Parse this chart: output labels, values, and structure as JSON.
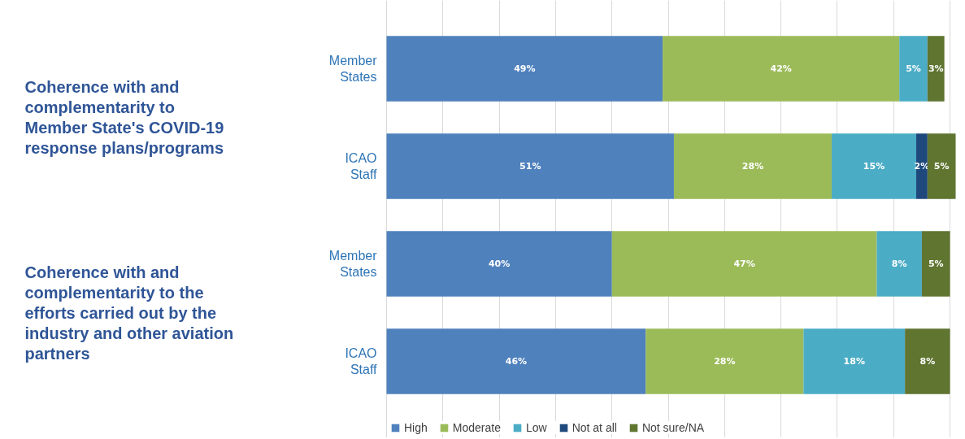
{
  "chart_data": {
    "type": "bar",
    "orientation": "horizontal",
    "stacked": true,
    "categories": [
      "Member States",
      "ICAO Staff",
      "Member States",
      "ICAO Staff"
    ],
    "series": [
      {
        "name": "High",
        "color": "#4f81bd",
        "values": [
          49,
          51,
          40,
          46
        ],
        "value_labels": [
          "49%",
          "51%",
          "40%",
          "46%"
        ]
      },
      {
        "name": "Moderate",
        "color": "#9bbb59",
        "values": [
          42,
          28,
          47,
          28
        ],
        "value_labels": [
          "42%",
          "28%",
          "47%",
          "28%"
        ]
      },
      {
        "name": "Low",
        "color": "#4bacc6",
        "values": [
          5,
          15,
          8,
          18
        ],
        "value_labels": [
          "5%",
          "15%",
          "8%",
          "18%"
        ]
      },
      {
        "name": "Not at all",
        "color": "#1f497d",
        "values": [
          null,
          2,
          null,
          null
        ],
        "value_labels": [
          null,
          "2%",
          null,
          null
        ]
      },
      {
        "name": "Not sure/NA",
        "color": "#5f7530",
        "values": [
          3,
          5,
          5,
          8
        ],
        "value_labels": [
          "3%",
          "5%",
          "5%",
          "8%"
        ]
      }
    ],
    "annotations": [
      "Coherence with and\ncomplementarity to\nMember State's COVID-19\nresponse plans/programs",
      "Coherence with and\ncomplementarity to the\nefforts carried out by the\nindustry and other aviation\npartners"
    ],
    "xlim": [
      0,
      101
    ],
    "xticks": [
      {
        "value": 0,
        "label": null
      },
      {
        "value": 10,
        "label": null
      },
      {
        "value": 20,
        "label": null
      },
      {
        "value": 30,
        "label": null
      },
      {
        "value": 40,
        "label": null
      },
      {
        "value": 50,
        "label": null
      },
      {
        "value": 60,
        "label": null
      },
      {
        "value": 70,
        "label": null
      },
      {
        "value": 80,
        "label": null
      },
      {
        "value": 90,
        "label": null
      },
      {
        "value": 100,
        "label": null
      }
    ],
    "tick_labels": "y",
    "grid": "x",
    "legend": "bottom"
  }
}
